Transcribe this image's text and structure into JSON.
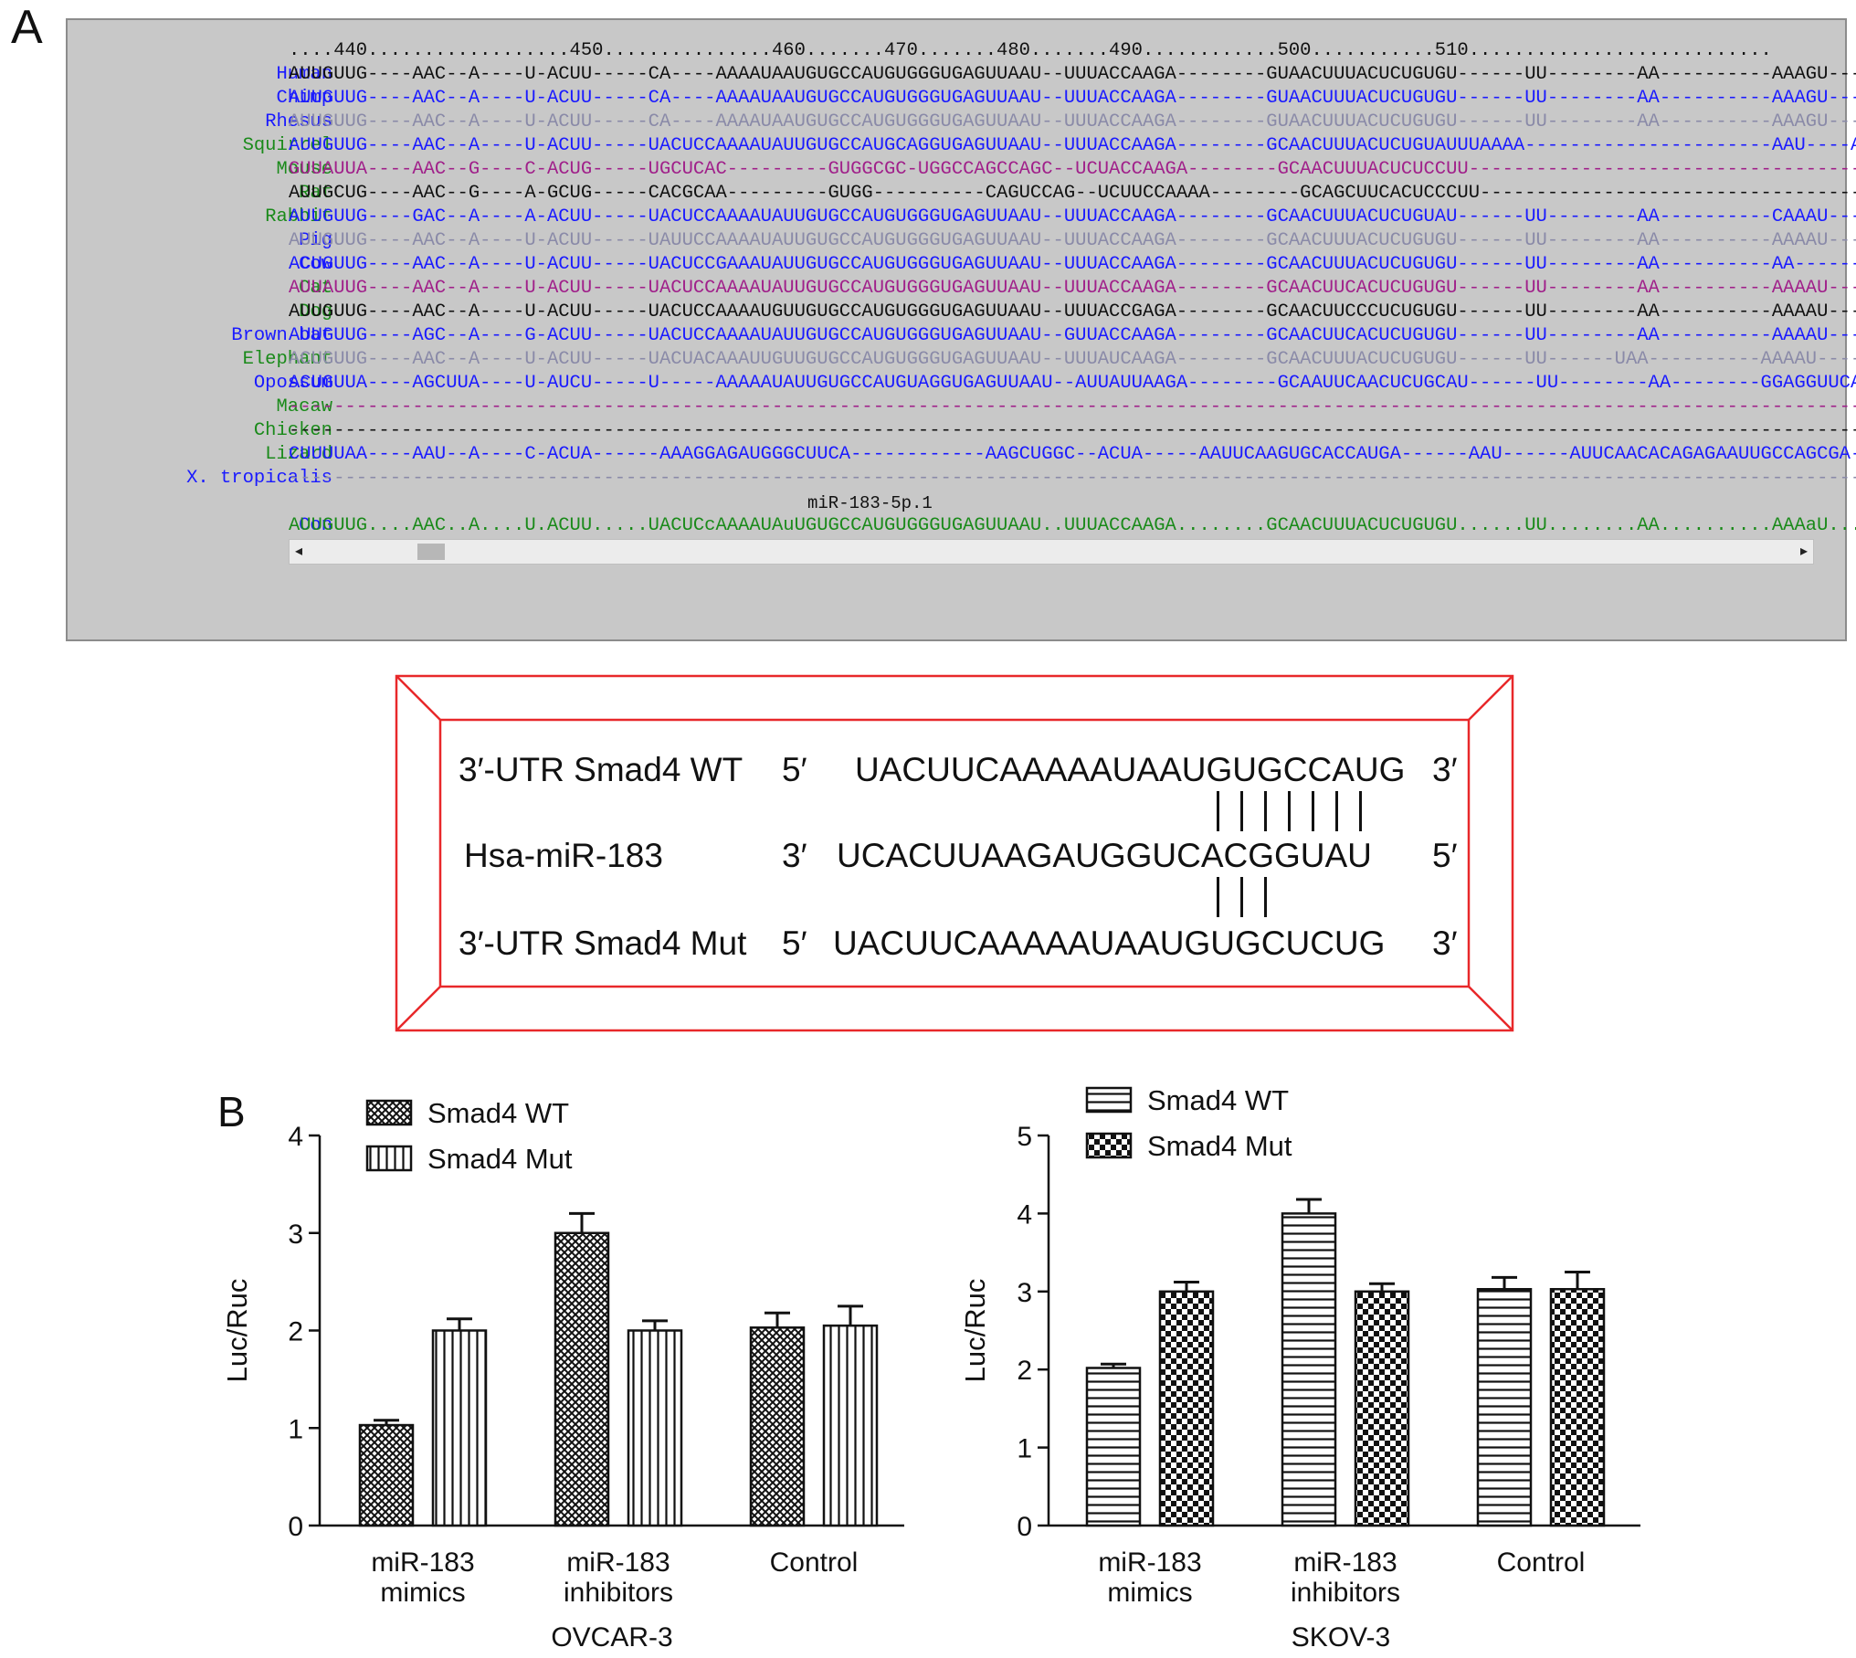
{
  "panel_a": {
    "letter": "A",
    "ruler": "....440..................450...............460.......470.......480.......490............500...........510...........................",
    "rows": [
      {
        "species": "Human",
        "name_color": "#1a1aff",
        "seq_color": "#111111",
        "seq": "AUUGUUG----AAC--A----U-ACUU-----CA----AAAAUAAUGUGCCAUGUGGGUGAGUUAAU--UUUACCAAGA--------GUAACUUUACUCUGUGU------UU--------AA----------AAAGU----A"
      },
      {
        "species": "Chimp",
        "name_color": "#1a1aff",
        "seq_color": "#1a1aff",
        "seq": "AUUGUUG----AAC--A----U-ACUU-----CA----AAAAUAAUGUGCCAUGUGGGUGAGUUAAU--UUUACCAAGA--------GUAACUUUACUCUGUGU------UU--------AA----------AAAGU----A"
      },
      {
        "species": "Rhesus",
        "name_color": "#1a1aff",
        "seq_color": "#8a8aa8",
        "seq": "AUUGUUG----AAC--A----U-ACUU-----CA----AAAAUAAUGUGCCAUGUGGGUGAGUUAAU--UUUACCAAGA--------GUAACUUUACUCUGUGU------UU--------AA----------AAAGU----A"
      },
      {
        "species": "Squirrel",
        "name_color": "#1a8a1a",
        "seq_color": "#1a1aff",
        "seq": "AUUGUUG----AAC--A----U-ACUU-----UACUCCAAAAUAUUGUGCCAUGCAGGUGAGUUAAU--UUUACCAAGA--------GCAACUUUACUCUGUAUUUAAAA----------------------AAU----A"
      },
      {
        "species": "Mouse",
        "name_color": "#1a8a1a",
        "seq_color": "#a0208a",
        "seq": "GUUAUUA----AAC--G----C-ACUG-----UGCUCAC---------GUGGCGC-UGGCCAGCCAGC--UCUACCAAGA--------GCAACUUUACUCUCCUU---------------------------------------"
      },
      {
        "species": "Rat",
        "name_color": "#1a8a1a",
        "seq_color": "#111111",
        "seq": "AUUGCUG----AAC--G----A-GCUG-----CACGCAA---------GUGG----------CAGUCCAG--UCUUCCAAAA--------GCAGCUUCACUCCCUU----------------------------------------"
      },
      {
        "species": "Rabbit",
        "name_color": "#1a8a1a",
        "seq_color": "#1a1aff",
        "seq": "AUUGUUG----GAC--A----A-ACUU-----UACUCCAAAAUAUUGUGCCAUGUGGGUGAGUUAAU--UUUACCAAGA--------GCAACUUUACUCUGUAU------UU--------AA----------CAAAU----A"
      },
      {
        "species": "Pig",
        "name_color": "#1a1aff",
        "seq_color": "#8a8aa8",
        "seq": "AUUGUUG----AAC--A----U-ACUU-----UAUUCCAAAAUAUUGUGCCAUGUGGGUGAGUUAAU--UUUACCAAGA--------GCAACUUUACUCUGUGU------UU--------AA----------AAAAU----A"
      },
      {
        "species": "Cow",
        "name_color": "#1a1aff",
        "seq_color": "#1a1aff",
        "seq": "ACUGUUG----AAC--A----U-ACUU-----UACUCCGAAAUAUUGUGCCAUGUGGGUGAGUUAAU--UUUACCAAGA--------GCAACUUUACUCUGUGU------UU--------AA----------AA-------A"
      },
      {
        "species": "Cat",
        "name_color": "#1a8a1a",
        "seq_color": "#a0208a",
        "seq": "AUUAUUG----AAC--A----U-ACUU-----UACUCCAAAAUAUUGUGCCAUGUGGGUGAGUUAAU--UUUACCAAGA--------GCAACUUCACUCUGUGU------UU--------AA----------AAAAU----A"
      },
      {
        "species": "Dog",
        "name_color": "#1a8a1a",
        "seq_color": "#111111",
        "seq": "AUUGUUG----AAC--A----U-ACUU-----UACUCCAAAAUGUUGUGCCAUGUGGGUGAGUUAAU--UUUACCGAGA--------GCAACUUCCCUCUGUGU------UU--------AA----------AAAAU----A"
      },
      {
        "species": "Brown bat",
        "name_color": "#1a1aff",
        "seq_color": "#1a1aff",
        "seq": "AUUGUUG----AGC--A----G-ACUU-----UACUCCAAAAUAUUGUGCCAUGUGGGUGAGUUAAU--GUUACCAAGA--------GCAACUUCACUCUGUGU------UU--------AA----------AAAAU----A"
      },
      {
        "species": "Elephant",
        "name_color": "#1a8a1a",
        "seq_color": "#8a8aa8",
        "seq": "ACUGUUG----AAC--A----U-ACUU-----UACUACAAAUUGUUGUGCCAUGUGGGUGAGUUAAU--UUUAUCAAGA--------GCAACUUUACUCUGUGU------UU------UAA----------AAAAU----A"
      },
      {
        "species": "Opossum",
        "name_color": "#1a1aff",
        "seq_color": "#1a1aff",
        "seq": "ACUGUUA----AGCUUA----U-AUCU-----U-----AAAAAUAUUGUGCCAUGUAGGUGAGUUAAU--AUUAUUAAGA--------GCAAUUCAACUCUGCAU------UU--------AA--------GGAGGUUCAG"
      },
      {
        "species": "Macaw",
        "name_color": "#1a8a1a",
        "seq_color": "#a0208a",
        "seq": "------------------------------------------------------------------------------------------------------------------------------------------------"
      },
      {
        "species": "Chicken",
        "name_color": "#1a8a1a",
        "seq_color": "#111111",
        "seq": "------------------------------------------------------------------------------------------------------------------------------------------------"
      },
      {
        "species": "Lizard",
        "name_color": "#1a8a1a",
        "seq_color": "#1a1aff",
        "seq": "CUUUUAA----AAU--A----C-ACUA------AAAGGAGAUGGGCUUCA------------AAGCUGGC--ACUA-----AAUUCAAGUGCACCAUGA------AAU------AUUCAACACAGAGAAUUGCCAGCGA----A"
      },
      {
        "species": "X. tropicalis",
        "name_color": "#1a1aff",
        "seq_color": "#8a8aa8",
        "seq": "------------------------------------------------------------------------------------------------------------------------------------------------"
      }
    ],
    "motif_label": "miR-183-5p.1",
    "consensus": {
      "species": "Con",
      "name_color": "#1a1aff",
      "seq_color": "#1a8a1a",
      "seq": "AUUGUUG....AAC..A....U.ACUU.....UACUCcAAAAUAuUGUGCCAUGUGGGUGAGUUAAU..UUUACCAAGA........GCAACUUUACUCUGUGU......UU........AA..........AAAaU....A"
    },
    "scroll_left": "◂",
    "scroll_right": "▸"
  },
  "pairing": {
    "wt_label": "3′-UTR Smad4 WT",
    "wt_5": "5′",
    "wt_seq": "UACUUCAAAAAUAAUGUGCCAUG",
    "wt_3": "3′",
    "mir_label": "Hsa-miR-183",
    "mir_3": "3′",
    "mir_seq": "UCACUUAAGAUGGUCACGGUAU",
    "mir_5": "5′",
    "mut_label": "3′-UTR Smad4 Mut",
    "mut_5": "5′",
    "mut_seq": "UACUUCAAAAAUAAUGUGCUCUG",
    "mut_3": "3′",
    "frame_color": "#e8282a"
  },
  "panel_b": {
    "letter": "B",
    "chart_data": [
      {
        "type": "bar",
        "categories": [
          "miR-183 mimics",
          "miR-183 inhibitors",
          "Control"
        ],
        "category_lines": [
          [
            "miR-183",
            "mimics"
          ],
          [
            "miR-183",
            "inhibitors"
          ],
          [
            "Control"
          ]
        ],
        "series": [
          {
            "name": "Smad4 WT",
            "pattern": "crosshatch",
            "values": [
              1.03,
              3.0,
              2.03
            ],
            "errors": [
              0.05,
              0.2,
              0.15
            ]
          },
          {
            "name": "Smad4 Mut",
            "pattern": "vertical",
            "values": [
              2.0,
              2.0,
              2.05
            ],
            "errors": [
              0.12,
              0.1,
              0.2
            ]
          }
        ],
        "xlabel": "OVCAR-3",
        "ylabel": "Luc/Ruc",
        "ylim": [
          0,
          4
        ],
        "yticks": [
          "0",
          "1",
          "2",
          "3",
          "4"
        ],
        "legend": "top-left",
        "grid": false
      },
      {
        "type": "bar",
        "categories": [
          "miR-183 mimics",
          "miR-183 inhibitors",
          "Control"
        ],
        "category_lines": [
          [
            "miR-183",
            "mimics"
          ],
          [
            "miR-183",
            "inhibitors"
          ],
          [
            "Control"
          ]
        ],
        "series": [
          {
            "name": "Smad4 WT",
            "pattern": "horizontal",
            "values": [
              2.02,
              4.0,
              3.03
            ],
            "errors": [
              0.05,
              0.18,
              0.15
            ]
          },
          {
            "name": "Smad4 Mut",
            "pattern": "checker",
            "values": [
              3.0,
              3.0,
              3.03
            ],
            "errors": [
              0.12,
              0.1,
              0.22
            ]
          }
        ],
        "xlabel": "SKOV-3",
        "ylabel": "Luc/Ruc",
        "ylim": [
          0,
          5
        ],
        "yticks": [
          "0",
          "1",
          "2",
          "3",
          "4",
          "5"
        ],
        "legend": "top-left",
        "grid": false
      }
    ]
  }
}
